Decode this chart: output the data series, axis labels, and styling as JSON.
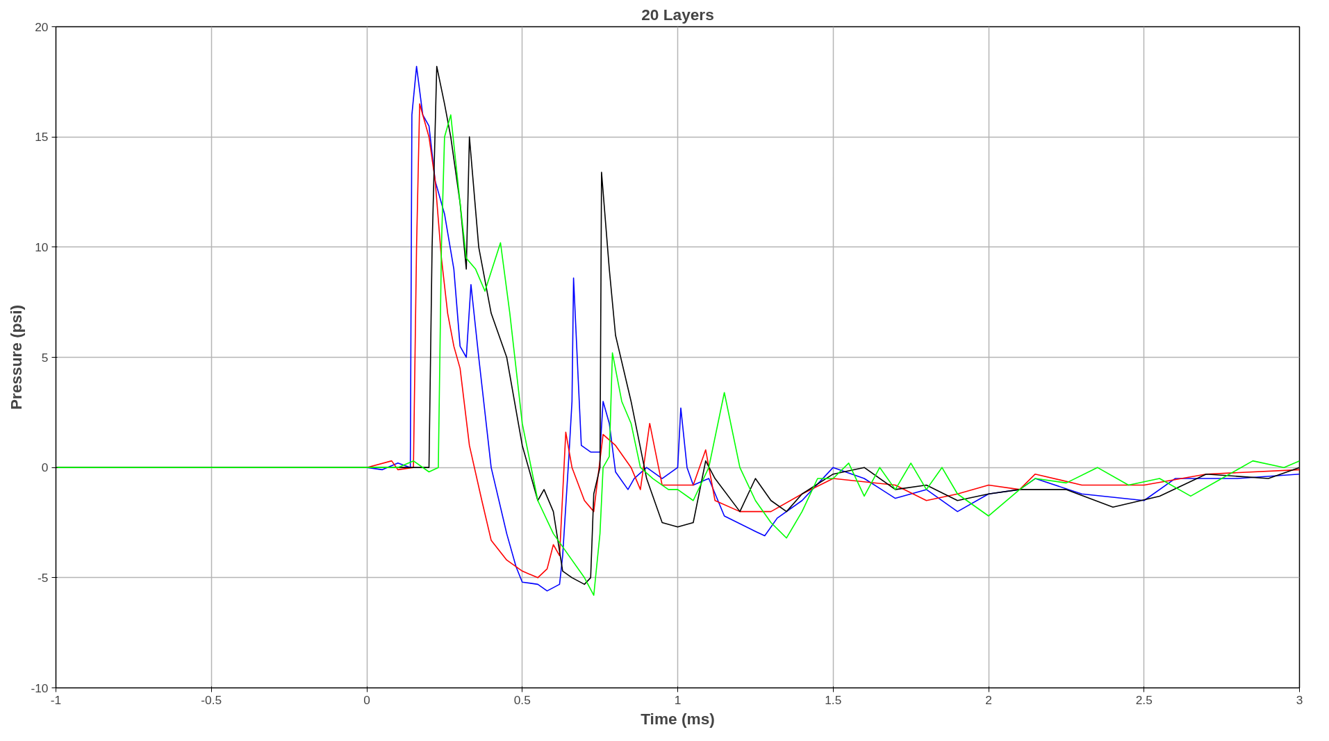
{
  "chart_data": {
    "type": "line",
    "title": "20 Layers",
    "xlabel": "Time (ms)",
    "ylabel": "Pressure (psi)",
    "xlim": [
      -1,
      3
    ],
    "ylim": [
      -10,
      20
    ],
    "xticks": [
      -1,
      -0.5,
      0,
      0.5,
      1,
      1.5,
      2,
      2.5,
      3
    ],
    "yticks": [
      -10,
      -5,
      0,
      5,
      10,
      15,
      20
    ],
    "grid": true,
    "line_style": "solid",
    "series": [
      {
        "color": "#0000ff",
        "x": [
          -1,
          0,
          0.05,
          0.1,
          0.14,
          0.145,
          0.16,
          0.18,
          0.2,
          0.22,
          0.25,
          0.28,
          0.3,
          0.32,
          0.335,
          0.36,
          0.4,
          0.45,
          0.48,
          0.5,
          0.55,
          0.58,
          0.62,
          0.63,
          0.65,
          0.66,
          0.665,
          0.68,
          0.69,
          0.72,
          0.75,
          0.76,
          0.78,
          0.8,
          0.84,
          0.86,
          0.9,
          0.95,
          1.0,
          1.01,
          1.03,
          1.05,
          1.1,
          1.15,
          1.25,
          1.28,
          1.32,
          1.4,
          1.5,
          1.6,
          1.7,
          1.8,
          1.9,
          2.0,
          2.1,
          2.15,
          2.3,
          2.5,
          2.6,
          2.8,
          3.0
        ],
        "values": [
          0,
          0,
          -0.1,
          0.2,
          0,
          16,
          18.2,
          16,
          15.5,
          13,
          11.5,
          9,
          5.5,
          5,
          8.3,
          5,
          0,
          -3,
          -4.5,
          -5.2,
          -5.3,
          -5.6,
          -5.3,
          -4,
          0.5,
          3,
          8.6,
          4,
          1,
          0.7,
          0.7,
          3,
          2,
          -0.2,
          -1,
          -0.5,
          0,
          -0.5,
          0,
          2.7,
          0,
          -0.8,
          -0.5,
          -2.2,
          -2.9,
          -3.1,
          -2.3,
          -1.5,
          0,
          -0.5,
          -1.4,
          -1,
          -2,
          -1.2,
          -1,
          -0.5,
          -1.2,
          -1.5,
          -0.5,
          -0.5,
          -0.3
        ]
      },
      {
        "color": "#ff0000",
        "x": [
          -1,
          0,
          0.08,
          0.1,
          0.15,
          0.16,
          0.17,
          0.2,
          0.22,
          0.24,
          0.26,
          0.28,
          0.3,
          0.33,
          0.37,
          0.4,
          0.45,
          0.5,
          0.55,
          0.58,
          0.6,
          0.62,
          0.64,
          0.66,
          0.7,
          0.73,
          0.76,
          0.8,
          0.85,
          0.88,
          0.91,
          0.95,
          1.05,
          1.09,
          1.12,
          1.2,
          1.3,
          1.4,
          1.5,
          1.7,
          1.8,
          1.9,
          2.0,
          2.1,
          2.15,
          2.3,
          2.5,
          2.7,
          3.0
        ],
        "values": [
          0,
          0,
          0.3,
          -0.1,
          0,
          10,
          16.5,
          15,
          13,
          9.5,
          7,
          5.5,
          4.5,
          1,
          -1.5,
          -3.3,
          -4.2,
          -4.7,
          -5,
          -4.6,
          -3.5,
          -4,
          1.6,
          0,
          -1.5,
          -2,
          1.5,
          1,
          0,
          -1,
          2,
          -0.8,
          -0.8,
          0.8,
          -1.5,
          -2,
          -2,
          -1.2,
          -0.5,
          -0.8,
          -1.5,
          -1.2,
          -0.8,
          -1,
          -0.3,
          -0.8,
          -0.8,
          -0.3,
          -0.1
        ]
      },
      {
        "color": "#000000",
        "x": [
          -1,
          0,
          0.2,
          0.21,
          0.225,
          0.25,
          0.27,
          0.3,
          0.32,
          0.33,
          0.36,
          0.4,
          0.45,
          0.5,
          0.55,
          0.57,
          0.6,
          0.63,
          0.66,
          0.7,
          0.72,
          0.73,
          0.75,
          0.755,
          0.78,
          0.8,
          0.85,
          0.9,
          0.95,
          1.0,
          1.05,
          1.09,
          1.12,
          1.2,
          1.25,
          1.3,
          1.35,
          1.4,
          1.5,
          1.6,
          1.7,
          1.8,
          1.9,
          2.0,
          2.1,
          2.25,
          2.4,
          2.55,
          2.7,
          2.9,
          3.0
        ],
        "values": [
          0,
          0,
          0,
          10,
          18.2,
          16.5,
          15,
          12,
          9,
          15,
          10,
          7,
          5,
          1,
          -1.5,
          -1,
          -2,
          -4.7,
          -5,
          -5.3,
          -5,
          -1.2,
          0,
          13.4,
          9,
          6,
          3,
          -0.5,
          -2.5,
          -2.7,
          -2.5,
          0.3,
          -0.5,
          -2,
          -0.5,
          -1.5,
          -2,
          -1.2,
          -0.3,
          0,
          -1,
          -0.8,
          -1.5,
          -1.2,
          -1,
          -1,
          -1.8,
          -1.3,
          -0.3,
          -0.5,
          0
        ]
      },
      {
        "color": "#00ff00",
        "x": [
          -1,
          0,
          0.1,
          0.15,
          0.2,
          0.23,
          0.24,
          0.25,
          0.27,
          0.3,
          0.32,
          0.35,
          0.38,
          0.43,
          0.46,
          0.5,
          0.55,
          0.6,
          0.65,
          0.7,
          0.73,
          0.75,
          0.76,
          0.78,
          0.79,
          0.82,
          0.85,
          0.88,
          0.92,
          0.97,
          1.0,
          1.05,
          1.1,
          1.15,
          1.2,
          1.25,
          1.3,
          1.35,
          1.4,
          1.45,
          1.5,
          1.55,
          1.6,
          1.65,
          1.7,
          1.75,
          1.8,
          1.85,
          1.9,
          2.0,
          2.1,
          2.15,
          2.25,
          2.35,
          2.45,
          2.55,
          2.65,
          2.75,
          2.85,
          2.95,
          3.0
        ],
        "values": [
          0,
          0,
          0,
          0.3,
          -0.2,
          0,
          10,
          15,
          16,
          12,
          9.5,
          9,
          8,
          10.2,
          7,
          2,
          -1.5,
          -3,
          -4,
          -5,
          -5.8,
          -3,
          0,
          0.5,
          5.2,
          3,
          2,
          0,
          -0.5,
          -1,
          -1,
          -1.5,
          0,
          3.4,
          0,
          -1.5,
          -2.5,
          -3.2,
          -2,
          -0.5,
          -0.5,
          0.2,
          -1.3,
          0,
          -1,
          0.2,
          -1,
          0,
          -1.2,
          -2.2,
          -1,
          -0.5,
          -0.7,
          0,
          -0.8,
          -0.5,
          -1.3,
          -0.5,
          0.3,
          0,
          0.3
        ]
      }
    ]
  }
}
